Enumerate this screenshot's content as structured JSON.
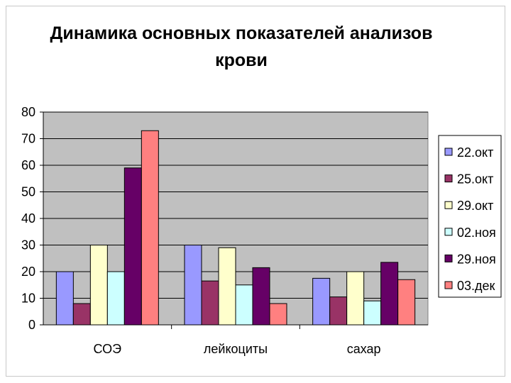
{
  "chart_data": {
    "type": "bar",
    "title": "Динамика основных показателей анализов крови",
    "xlabel": "",
    "ylabel": "",
    "categories": [
      "СОЭ",
      "лейкоциты",
      "сахар"
    ],
    "ylim": [
      0,
      80
    ],
    "yticks": [
      "0",
      "10",
      "20",
      "30",
      "40",
      "50",
      "60",
      "70",
      "80"
    ],
    "grid": true,
    "legend_position": "right",
    "series": [
      {
        "name": "22.окт",
        "color": "#9999ff",
        "values": [
          20,
          30,
          17.5
        ]
      },
      {
        "name": "25.окт",
        "color": "#993366",
        "values": [
          8,
          16.5,
          10.5
        ]
      },
      {
        "name": "29.окт",
        "color": "#ffffcc",
        "values": [
          30,
          29,
          20
        ]
      },
      {
        "name": "02.ноя",
        "color": "#ccffff",
        "values": [
          20,
          15,
          9
        ]
      },
      {
        "name": "29.ноя",
        "color": "#660066",
        "values": [
          59,
          21.5,
          23.5
        ]
      },
      {
        "name": "03.дек",
        "color": "#ff8080",
        "values": [
          73,
          8,
          17
        ]
      }
    ],
    "plot_background": "#c0c0c0"
  }
}
